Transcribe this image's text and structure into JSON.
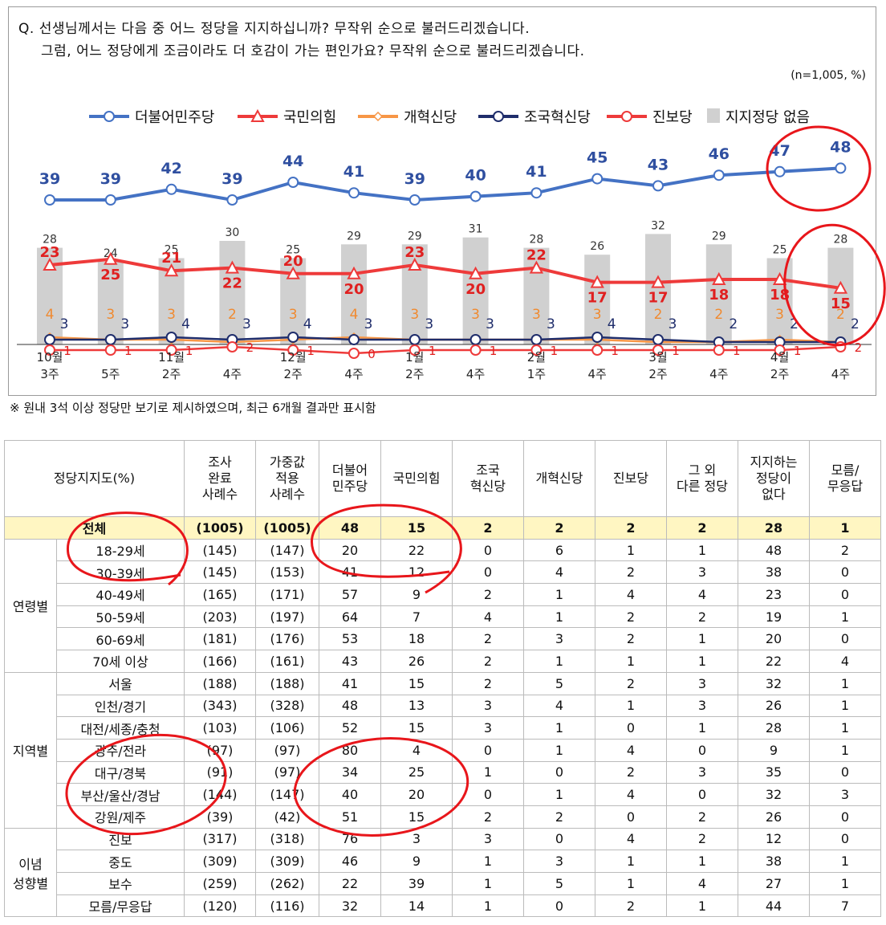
{
  "question": {
    "line1": "Q. 선생님께서는 다음 중 어느 정당을 지지하십니까? 무작위 순으로 불러드리겠습니다.",
    "line2": "그럼, 어느 정당에게 조금이라도 더 호감이 가는 편인가요? 무작위 순으로 불러드리겠습니다."
  },
  "sample_note": "(n=1,005, %)",
  "footnote": "※ 원내 3석 이상 정당만 보기로 제시하였으며, 최근 6개월 결과만 표시함",
  "chart_data": {
    "type": "line",
    "x_labels": [
      [
        "10월",
        "3주"
      ],
      [
        "",
        "5주"
      ],
      [
        "11월",
        "2주"
      ],
      [
        "",
        "4주"
      ],
      [
        "12월",
        "2주"
      ],
      [
        "",
        "4주"
      ],
      [
        "1월",
        "2주"
      ],
      [
        "",
        "4주"
      ],
      [
        "2월",
        "1주"
      ],
      [
        "",
        "4주"
      ],
      [
        "3월",
        "2주"
      ],
      [
        "",
        "4주"
      ],
      [
        "4월",
        "2주"
      ],
      [
        "",
        "4주"
      ]
    ],
    "bars": {
      "name": "지지정당 없음",
      "color": "#d0d0d0",
      "values": [
        28,
        24,
        25,
        30,
        25,
        29,
        29,
        31,
        28,
        26,
        32,
        29,
        25,
        28
      ]
    },
    "series": [
      {
        "name": "더불어민주당",
        "color": "#4472c4",
        "marker": "circle",
        "values": [
          39,
          39,
          42,
          39,
          44,
          41,
          39,
          40,
          41,
          45,
          43,
          46,
          47,
          48
        ]
      },
      {
        "name": "국민의힘",
        "color": "#ee3a3a",
        "marker": "triangle",
        "values": [
          23,
          25,
          21,
          22,
          20,
          20,
          23,
          20,
          22,
          17,
          17,
          18,
          18,
          15
        ]
      },
      {
        "name": "개혁신당",
        "color": "#f79646",
        "marker": "diamond",
        "values": [
          4,
          3,
          3,
          2,
          3,
          4,
          3,
          3,
          3,
          3,
          2,
          2,
          3,
          2
        ]
      },
      {
        "name": "조국혁신당",
        "color": "#1f2d6b",
        "marker": "circle",
        "values": [
          3,
          3,
          4,
          3,
          4,
          3,
          3,
          3,
          3,
          4,
          3,
          2,
          2,
          2
        ]
      },
      {
        "name": "진보당",
        "color": "#ee3a3a",
        "marker": "circle",
        "values": [
          1,
          1,
          1,
          2,
          1,
          0,
          1,
          1,
          1,
          1,
          1,
          1,
          1,
          2
        ]
      }
    ]
  },
  "table": {
    "corner": "정당지지도(%)",
    "headers": [
      "조사\n완료\n사례수",
      "가중값\n적용\n사례수",
      "더불어\n민주당",
      "국민의힘",
      "조국\n혁신당",
      "개혁신당",
      "진보당",
      "그 외\n다른 정당",
      "지지하는\n정당이\n없다",
      "모름/\n무응답"
    ],
    "total": {
      "label": "전체",
      "values": [
        "(1005)",
        "(1005)",
        "48",
        "15",
        "2",
        "2",
        "2",
        "2",
        "28",
        "1"
      ]
    },
    "groups": [
      {
        "name": "연령별",
        "rows": [
          {
            "label": "18-29세",
            "values": [
              "(145)",
              "(147)",
              "20",
              "22",
              "0",
              "6",
              "1",
              "1",
              "48",
              "2"
            ]
          },
          {
            "label": "30-39세",
            "values": [
              "(145)",
              "(153)",
              "41",
              "12",
              "0",
              "4",
              "2",
              "3",
              "38",
              "0"
            ]
          },
          {
            "label": "40-49세",
            "values": [
              "(165)",
              "(171)",
              "57",
              "9",
              "2",
              "1",
              "4",
              "4",
              "23",
              "0"
            ]
          },
          {
            "label": "50-59세",
            "values": [
              "(203)",
              "(197)",
              "64",
              "7",
              "4",
              "1",
              "2",
              "2",
              "19",
              "1"
            ]
          },
          {
            "label": "60-69세",
            "values": [
              "(181)",
              "(176)",
              "53",
              "18",
              "2",
              "3",
              "2",
              "1",
              "20",
              "0"
            ]
          },
          {
            "label": "70세 이상",
            "values": [
              "(166)",
              "(161)",
              "43",
              "26",
              "2",
              "1",
              "1",
              "1",
              "22",
              "4"
            ]
          }
        ]
      },
      {
        "name": "지역별",
        "rows": [
          {
            "label": "서울",
            "values": [
              "(188)",
              "(188)",
              "41",
              "15",
              "2",
              "5",
              "2",
              "3",
              "32",
              "1"
            ]
          },
          {
            "label": "인천/경기",
            "values": [
              "(343)",
              "(328)",
              "48",
              "13",
              "3",
              "4",
              "1",
              "3",
              "26",
              "1"
            ]
          },
          {
            "label": "대전/세종/충청",
            "values": [
              "(103)",
              "(106)",
              "52",
              "15",
              "3",
              "1",
              "0",
              "1",
              "28",
              "1"
            ]
          },
          {
            "label": "광주/전라",
            "values": [
              "(97)",
              "(97)",
              "80",
              "4",
              "0",
              "1",
              "4",
              "0",
              "9",
              "1"
            ]
          },
          {
            "label": "대구/경북",
            "values": [
              "(91)",
              "(97)",
              "34",
              "25",
              "1",
              "0",
              "2",
              "3",
              "35",
              "0"
            ]
          },
          {
            "label": "부산/울산/경남",
            "values": [
              "(144)",
              "(147)",
              "40",
              "20",
              "0",
              "1",
              "4",
              "0",
              "32",
              "3"
            ]
          },
          {
            "label": "강원/제주",
            "values": [
              "(39)",
              "(42)",
              "51",
              "15",
              "2",
              "2",
              "0",
              "2",
              "26",
              "0"
            ]
          }
        ]
      },
      {
        "name": "이념\n성향별",
        "rows": [
          {
            "label": "진보",
            "values": [
              "(317)",
              "(318)",
              "76",
              "3",
              "3",
              "0",
              "4",
              "2",
              "12",
              "0"
            ]
          },
          {
            "label": "중도",
            "values": [
              "(309)",
              "(309)",
              "46",
              "9",
              "1",
              "3",
              "1",
              "1",
              "38",
              "1"
            ]
          },
          {
            "label": "보수",
            "values": [
              "(259)",
              "(262)",
              "22",
              "39",
              "1",
              "5",
              "1",
              "4",
              "27",
              "1"
            ]
          },
          {
            "label": "모름/무응답",
            "values": [
              "(120)",
              "(116)",
              "32",
              "14",
              "1",
              "0",
              "2",
              "1",
              "44",
              "7"
            ]
          }
        ]
      }
    ]
  }
}
